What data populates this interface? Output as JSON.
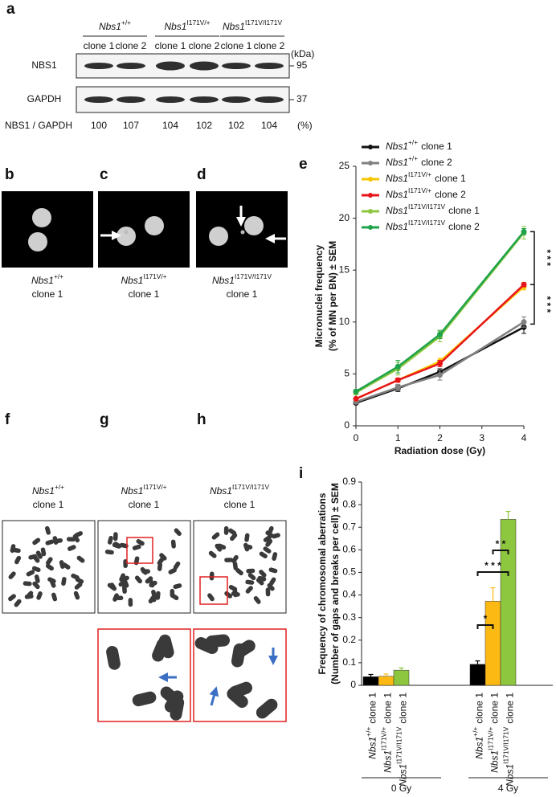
{
  "panel_labels": [
    "a",
    "b",
    "c",
    "d",
    "e",
    "f",
    "g",
    "h",
    "i"
  ],
  "blot": {
    "genotypes": [
      {
        "gene": "Nbs1",
        "allele": "+/+"
      },
      {
        "gene": "Nbs1",
        "allele": "I171V/+"
      },
      {
        "gene": "Nbs1",
        "allele": "I171V/I171V"
      }
    ],
    "clones": [
      "clone 1",
      "clone 2",
      "clone 1",
      "clone 2",
      "clone 1",
      "clone 2"
    ],
    "unit": "(kDa)",
    "rows": [
      {
        "label": "NBS1",
        "marker": "95"
      },
      {
        "label": "GAPDH",
        "marker": "37"
      }
    ],
    "ratio": {
      "label": "NBS1 / GAPDH",
      "values": [
        100,
        107,
        104,
        102,
        102,
        104
      ],
      "unit": "(%)"
    }
  },
  "micrographs": [
    {
      "gene": "Nbs1",
      "allele": "+/+",
      "clone": "clone 1"
    },
    {
      "gene": "Nbs1",
      "allele": "I171V/+",
      "clone": "clone 1"
    },
    {
      "gene": "Nbs1",
      "allele": "I171V/I171V",
      "clone": "clone 1"
    }
  ],
  "spreads": [
    {
      "gene": "Nbs1",
      "allele": "+/+",
      "clone": "clone 1"
    },
    {
      "gene": "Nbs1",
      "allele": "I171V/+",
      "clone": "clone 1"
    },
    {
      "gene": "Nbs1",
      "allele": "I171V/I171V",
      "clone": "clone 1"
    }
  ],
  "chart_data": [
    {
      "type": "line",
      "ylabel": [
        "Micronuclei frequency",
        "(% of MN per BN) ± SEM"
      ],
      "xlabel": "Radiation dose (Gy)",
      "x": [
        0,
        1,
        2,
        4
      ],
      "xlim": [
        0,
        4
      ],
      "xticks": [
        0,
        1,
        2,
        3,
        4
      ],
      "ylim": [
        0,
        25
      ],
      "yticks": [
        0,
        5,
        10,
        15,
        20,
        25
      ],
      "series": [
        {
          "gene": "Nbs1",
          "allele": "+/+",
          "name": "clone 1",
          "color": "#111111",
          "values": [
            2.2,
            3.6,
            5.2,
            9.5
          ],
          "errors": [
            0.1,
            0.3,
            0.3,
            0.6
          ]
        },
        {
          "gene": "Nbs1",
          "allele": "+/+",
          "name": "clone 2",
          "color": "#808080",
          "values": [
            2.3,
            3.7,
            4.9,
            10.0
          ],
          "errors": [
            0.1,
            0.3,
            0.5,
            0.5
          ]
        },
        {
          "gene": "Nbs1",
          "allele": "I171V/+",
          "name": "clone 1",
          "color": "#f7c400",
          "values": [
            2.6,
            4.4,
            6.2,
            13.4
          ],
          "errors": [
            0.1,
            0.2,
            0.3,
            0.3
          ]
        },
        {
          "gene": "Nbs1",
          "allele": "I171V/+",
          "name": "clone 2",
          "color": "#e8141b",
          "values": [
            2.6,
            4.4,
            6.0,
            13.6
          ],
          "errors": [
            0.1,
            0.2,
            0.3,
            0.2
          ]
        },
        {
          "gene": "Nbs1",
          "allele": "I171V/I171V",
          "name": "clone 1",
          "color": "#8dc63f",
          "values": [
            3.2,
            5.5,
            8.6,
            18.6
          ],
          "errors": [
            0.2,
            0.6,
            0.5,
            0.6
          ]
        },
        {
          "gene": "Nbs1",
          "allele": "I171V/I171V",
          "name": "clone 2",
          "color": "#1ea34a",
          "values": [
            3.3,
            5.7,
            8.8,
            18.7
          ],
          "errors": [
            0.2,
            0.6,
            0.4,
            0.3
          ]
        }
      ],
      "annotations": [
        "* * *",
        "* * *"
      ]
    },
    {
      "type": "bar",
      "ylabel": [
        "Frequency of chromosomal aberrations",
        "(Number of gaps and breaks per cell) ± SEM"
      ],
      "categories": [
        "0 Gy",
        "4 Gy"
      ],
      "ylim": [
        0,
        0.9
      ],
      "yticks": [
        0,
        0.1,
        0.2,
        0.3,
        0.4,
        0.5,
        0.6,
        0.7,
        0.8,
        0.9
      ],
      "series": [
        {
          "gene": "Nbs1",
          "allele": "+/+",
          "name": "clone 1",
          "color": "#000000",
          "values": [
            0.038,
            0.093
          ],
          "errors": [
            0.01,
            0.015
          ]
        },
        {
          "gene": "Nbs1",
          "allele": "I171V/+",
          "name": "clone 1",
          "color": "#fdb913",
          "values": [
            0.04,
            0.372
          ],
          "errors": [
            0.01,
            0.06
          ]
        },
        {
          "gene": "Nbs1",
          "allele": "I171V/I171V",
          "name": "clone 1",
          "color": "#8dc63f",
          "values": [
            0.067,
            0.735
          ],
          "errors": [
            0.01,
            0.035
          ]
        }
      ],
      "annotations": [
        "*",
        "* * *",
        "* *"
      ]
    }
  ]
}
